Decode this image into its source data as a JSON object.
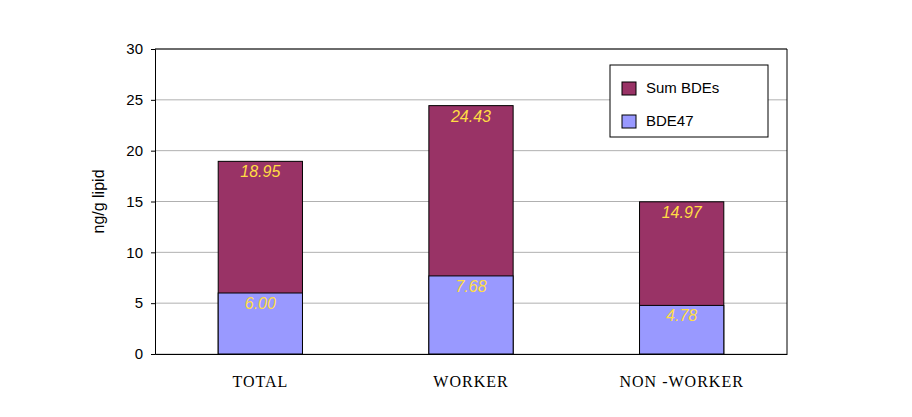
{
  "chart_data": {
    "type": "bar",
    "categories": [
      "TOTAL",
      "WORKER",
      "NON -WORKER"
    ],
    "series": [
      {
        "name": "Sum BDEs",
        "color": "#993366",
        "values": [
          18.95,
          24.43,
          14.97
        ]
      },
      {
        "name": "BDE47",
        "color": "#9999ff",
        "values": [
          6.0,
          7.68,
          4.78
        ],
        "value_labels": [
          "6.00",
          "7.68",
          "4.78"
        ]
      }
    ],
    "y_label": "ng/g lipid",
    "ylim": [
      0,
      30
    ],
    "yticks": [
      0,
      5,
      10,
      15,
      20,
      25,
      30
    ],
    "grid": true,
    "stacked": false,
    "data_labels": true,
    "legend": "top-right"
  }
}
